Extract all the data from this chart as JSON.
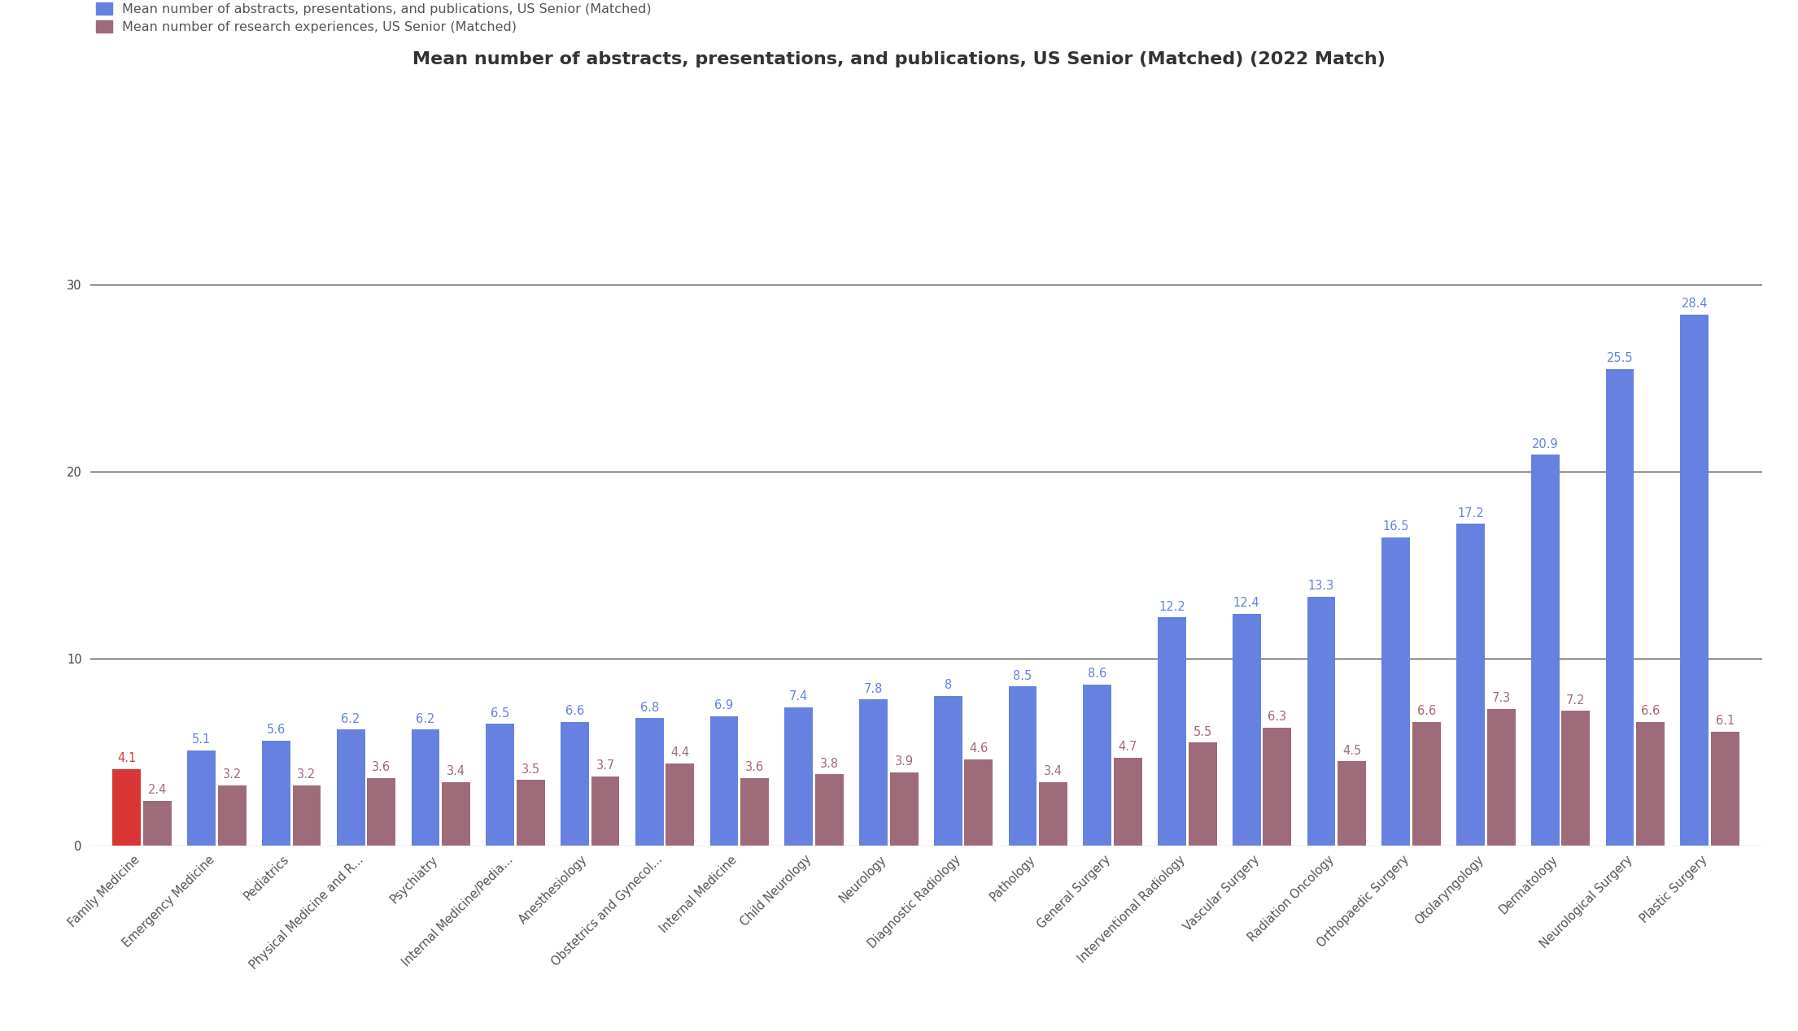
{
  "title": "Mean number of abstracts, presentations, and publications, US Senior (Matched) (2022 Match)",
  "legend1": "Mean number of abstracts, presentations, and publications, US Senior (Matched)",
  "legend2": "Mean number of research experiences, US Senior (Matched)",
  "categories": [
    "Family Medicine",
    "Emergency Medicine",
    "Pediatrics",
    "Physical Medicine and R...",
    "Psychiatry",
    "Internal Medicine/Pedia...",
    "Anesthesiology",
    "Obstetrics and Gynecol...",
    "Internal Medicine",
    "Child Neurology",
    "Neurology",
    "Diagnostic Radiology",
    "Pathology",
    "General Surgery",
    "Interventional Radiology",
    "Vascular Surgery",
    "Radiation Oncology",
    "Orthopaedic Surgery",
    "Otolaryngology",
    "Dermatology",
    "Neurological Surgery",
    "Plastic Surgery"
  ],
  "blue_values": [
    4.1,
    5.1,
    5.6,
    6.2,
    6.2,
    6.5,
    6.6,
    6.8,
    6.9,
    7.4,
    7.8,
    8.0,
    8.5,
    8.6,
    12.2,
    12.4,
    13.3,
    16.5,
    17.2,
    20.9,
    25.5,
    28.4
  ],
  "blue_labels": [
    "4.1",
    "5.1",
    "5.6",
    "6.2",
    "6.2",
    "6.5",
    "6.6",
    "6.8",
    "6.9",
    "7.4",
    "7.8",
    "8",
    "8.5",
    "8.6",
    "12.2",
    "12.4",
    "13.3",
    "16.5",
    "17.2",
    "20.9",
    "25.5",
    "28.4"
  ],
  "pink_values": [
    2.4,
    3.2,
    3.2,
    3.6,
    3.4,
    3.5,
    3.7,
    4.4,
    3.6,
    3.8,
    3.9,
    4.6,
    3.4,
    4.7,
    5.5,
    6.3,
    4.5,
    6.6,
    7.3,
    7.2,
    6.6,
    6.1
  ],
  "pink_labels": [
    "2.4",
    "3.2",
    "3.2",
    "3.6",
    "3.4",
    "3.5",
    "3.7",
    "4.4",
    "3.6",
    "3.8",
    "3.9",
    "4.6",
    "3.4",
    "4.7",
    "5.5",
    "6.3",
    "4.5",
    "6.6",
    "7.3",
    "7.2",
    "6.6",
    "6.1"
  ],
  "bar_color_blue": "#6681E0",
  "bar_color_pink": "#9E6B7A",
  "bar_color_red": "#D93535",
  "ylim": [
    0,
    32
  ],
  "yticks": [
    0,
    10,
    20,
    30
  ],
  "title_fontsize": 16,
  "label_fontsize": 10.5,
  "tick_fontsize": 10.5,
  "legend_fontsize": 11.5,
  "background_color": "#ffffff",
  "grid_color": "#222222"
}
